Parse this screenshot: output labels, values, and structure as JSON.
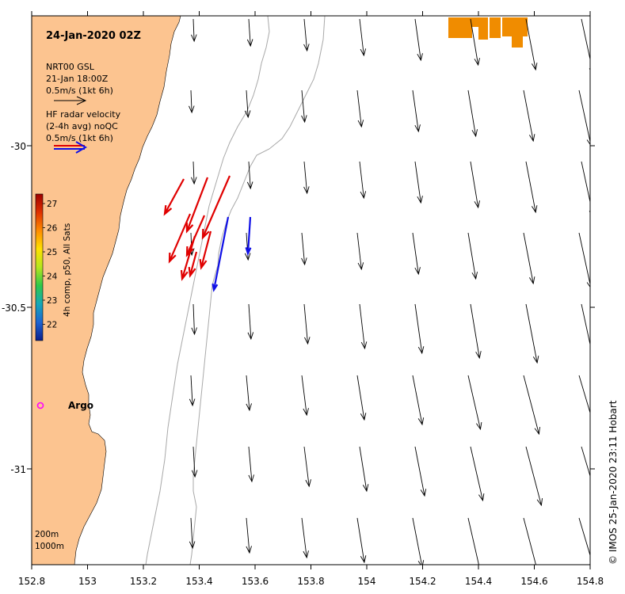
{
  "title": "24-Jan-2020 02Z",
  "legend": {
    "model_line1": "NRT00 GSL",
    "model_line2": "21-Jan 18:00Z",
    "model_scale": "0.5m/s (1kt 6h)",
    "hf_line1": "HF radar velocity",
    "hf_line2": "(2-4h avg) noQC",
    "hf_scale": "0.5m/s (1kt 6h)"
  },
  "colorbar": {
    "label": "4h comp, p50, All Sats",
    "ticks": [
      "27",
      "26",
      "25",
      "24",
      "23",
      "22"
    ],
    "colors": [
      "#9e0000",
      "#e03000",
      "#ff8c00",
      "#ffe100",
      "#b5e61d",
      "#2ec94a",
      "#16a8b8",
      "#1e64d2",
      "#0a1e8c"
    ]
  },
  "argo_label": "Argo",
  "depth_labels": [
    "200m",
    "1000m"
  ],
  "x_ticks": [
    "152.8",
    "153",
    "153.2",
    "153.4",
    "153.6",
    "153.8",
    "154",
    "154.2",
    "154.4",
    "154.6",
    "154.8"
  ],
  "y_ticks": [
    "-30",
    "-30.5",
    "-31"
  ],
  "credit": "© IMOS 25-Jan-2020 23:11 Hobart",
  "colors": {
    "land": "#fcc490",
    "logo": "#f08c00",
    "hf_red": "#e00000",
    "hf_blue": "#1010e6",
    "argo": "#ff00ff"
  }
}
